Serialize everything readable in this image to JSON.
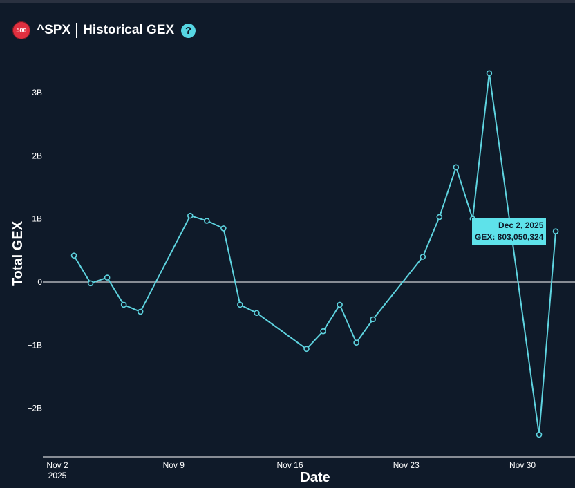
{
  "header": {
    "badge_text": "500",
    "ticker": "^SPX",
    "title": "Historical GEX",
    "help_icon": "?"
  },
  "tooltip": {
    "date": "Dec 2, 2025",
    "value_text": "GEX: 803,050,324"
  },
  "colors": {
    "background": "#0f1a29",
    "line": "#5ed3df",
    "tooltip_bg": "#5ee2ea"
  },
  "chart_data": {
    "type": "line",
    "title": "Historical GEX",
    "xlabel": "Date",
    "ylabel": "Total GEX",
    "x_tick_labels": [
      {
        "date": "2025-11-02",
        "label": "Nov 2",
        "sub": "2025"
      },
      {
        "date": "2025-11-09",
        "label": "Nov 9",
        "sub": ""
      },
      {
        "date": "2025-11-16",
        "label": "Nov 16",
        "sub": ""
      },
      {
        "date": "2025-11-23",
        "label": "Nov 23",
        "sub": ""
      },
      {
        "date": "2025-11-30",
        "label": "Nov 30",
        "sub": ""
      }
    ],
    "y_ticks": [
      {
        "value": 3000000000,
        "label": "3B"
      },
      {
        "value": 2000000000,
        "label": "2B"
      },
      {
        "value": 1000000000,
        "label": "1B"
      },
      {
        "value": 0,
        "label": "0"
      },
      {
        "value": -1000000000,
        "label": "−1B"
      },
      {
        "value": -2000000000,
        "label": "−2B"
      }
    ],
    "ylim": [
      -2800000000,
      3700000000
    ],
    "xlim": [
      "2025-11-01",
      "2025-12-03"
    ],
    "series": [
      {
        "x": [
          "2025-11-03",
          "2025-11-04",
          "2025-11-05",
          "2025-11-06",
          "2025-11-07",
          "2025-11-10",
          "2025-11-11",
          "2025-11-12",
          "2025-11-13",
          "2025-11-14",
          "2025-11-17",
          "2025-11-18",
          "2025-11-19",
          "2025-11-20",
          "2025-11-21",
          "2025-11-24",
          "2025-11-25",
          "2025-11-26",
          "2025-11-27",
          "2025-11-28",
          "2025-12-01",
          "2025-12-02"
        ],
        "y": [
          420000000,
          -20000000,
          70000000,
          -360000000,
          -470000000,
          1050000000,
          970000000,
          850000000,
          -360000000,
          -490000000,
          -1060000000,
          -780000000,
          -360000000,
          -960000000,
          -590000000,
          400000000,
          1030000000,
          1820000000,
          1000000000,
          3310000000,
          -2420000000,
          803050324
        ]
      }
    ]
  }
}
